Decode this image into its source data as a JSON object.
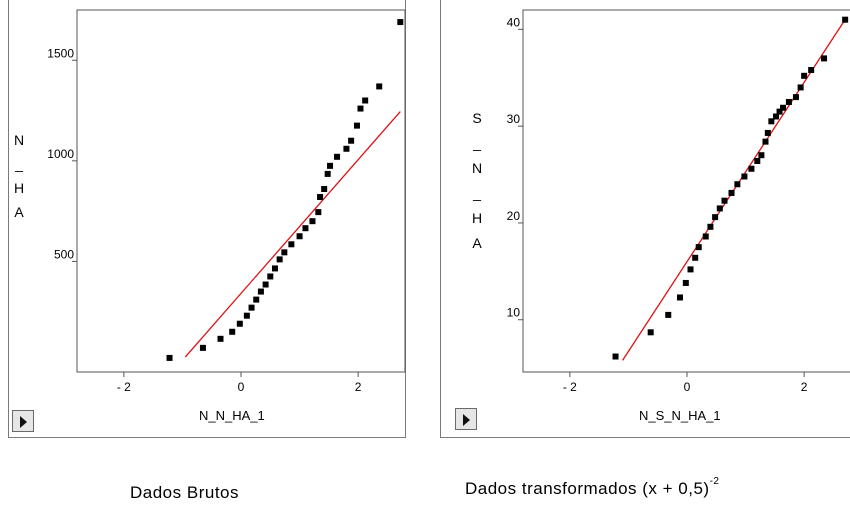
{
  "colors": {
    "fit_line": "#dd1111",
    "points": "#000000",
    "frame": "#555555"
  },
  "icons": {
    "corner_button": "play-triangle-icon"
  },
  "chart_data": [
    {
      "type": "scatter",
      "xlabel": "N_N_HA_1",
      "ylabel": "N_HA",
      "ylabel_chars": [
        "N",
        "_",
        "H",
        "A"
      ],
      "xlim": [
        -2.8,
        2.8
      ],
      "ylim": [
        -50,
        1750
      ],
      "xticks": [
        -2,
        0,
        2
      ],
      "xtick_labels": [
        "- 2",
        "0",
        "2"
      ],
      "yticks": [
        500,
        1000,
        1500
      ],
      "ytick_labels": [
        "500",
        "1000",
        "1500"
      ],
      "points": [
        [
          -1.22,
          20
        ],
        [
          -0.65,
          70
        ],
        [
          -0.35,
          115
        ],
        [
          -0.15,
          150
        ],
        [
          -0.02,
          190
        ],
        [
          0.1,
          230
        ],
        [
          0.18,
          270
        ],
        [
          0.26,
          310
        ],
        [
          0.34,
          350
        ],
        [
          0.42,
          385
        ],
        [
          0.5,
          425
        ],
        [
          0.58,
          465
        ],
        [
          0.66,
          510
        ],
        [
          0.74,
          545
        ],
        [
          0.86,
          585
        ],
        [
          1.0,
          625
        ],
        [
          1.1,
          665
        ],
        [
          1.22,
          700
        ],
        [
          1.32,
          745
        ],
        [
          1.35,
          820
        ],
        [
          1.42,
          860
        ],
        [
          1.48,
          935
        ],
        [
          1.52,
          975
        ],
        [
          1.64,
          1020
        ],
        [
          1.8,
          1060
        ],
        [
          1.88,
          1100
        ],
        [
          1.98,
          1175
        ],
        [
          2.04,
          1260
        ],
        [
          2.12,
          1300
        ],
        [
          2.36,
          1370
        ],
        [
          2.72,
          1690
        ]
      ],
      "fit_line": {
        "x": [
          -0.95,
          2.72
        ],
        "y": [
          25,
          1245
        ]
      }
    },
    {
      "type": "scatter",
      "xlabel": "N_S_N_HA_1",
      "ylabel": "S_N_HA",
      "ylabel_chars": [
        "S",
        "_",
        "N",
        "_",
        "H",
        "A"
      ],
      "xlim": [
        -2.8,
        2.8
      ],
      "ylim": [
        4.6,
        42
      ],
      "xticks": [
        -2,
        0,
        2
      ],
      "xtick_labels": [
        "- 2",
        "0",
        "2"
      ],
      "yticks": [
        10,
        20,
        30,
        40
      ],
      "ytick_labels": [
        "10",
        "20",
        "30",
        "40"
      ],
      "points": [
        [
          -1.22,
          6.2
        ],
        [
          -0.62,
          8.7
        ],
        [
          -0.32,
          10.5
        ],
        [
          -0.12,
          12.3
        ],
        [
          -0.02,
          13.8
        ],
        [
          0.06,
          15.2
        ],
        [
          0.14,
          16.4
        ],
        [
          0.2,
          17.5
        ],
        [
          0.32,
          18.6
        ],
        [
          0.4,
          19.6
        ],
        [
          0.48,
          20.6
        ],
        [
          0.56,
          21.5
        ],
        [
          0.64,
          22.3
        ],
        [
          0.76,
          23.1
        ],
        [
          0.86,
          24.0
        ],
        [
          0.98,
          24.8
        ],
        [
          1.1,
          25.6
        ],
        [
          1.2,
          26.4
        ],
        [
          1.27,
          27.0
        ],
        [
          1.34,
          28.4
        ],
        [
          1.38,
          29.3
        ],
        [
          1.44,
          30.5
        ],
        [
          1.52,
          31.0
        ],
        [
          1.58,
          31.5
        ],
        [
          1.64,
          31.9
        ],
        [
          1.74,
          32.5
        ],
        [
          1.86,
          33.0
        ],
        [
          1.94,
          34.0
        ],
        [
          2.0,
          35.2
        ],
        [
          2.12,
          35.8
        ],
        [
          2.34,
          37.0
        ],
        [
          2.7,
          41.0
        ]
      ],
      "fit_line": {
        "x": [
          -1.1,
          2.72
        ],
        "y": [
          5.8,
          41.2
        ]
      }
    }
  ],
  "captions": {
    "left": "Dados Brutos",
    "right_main": "Dados transformados (x  +  0,5)",
    "right_sup": "-2"
  }
}
